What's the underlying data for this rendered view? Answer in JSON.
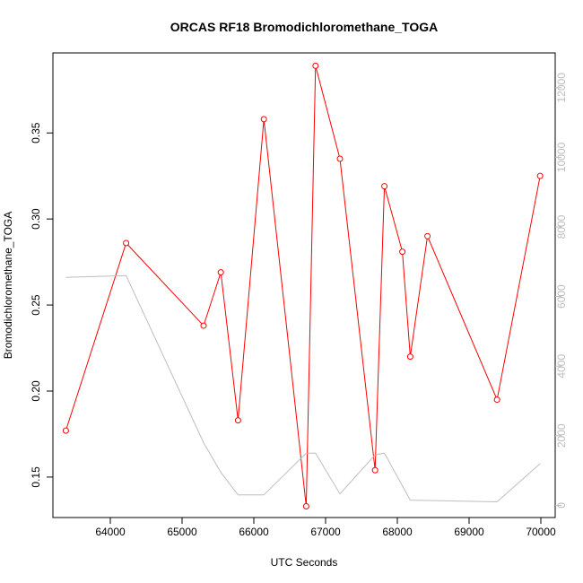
{
  "chart_data": {
    "type": "line",
    "title": "ORCAS RF18 Bromodichloromethane_TOGA",
    "xlabel": "UTC Seconds",
    "ylabel": "Bromodichloromethane_TOGA",
    "xlim": [
      63200,
      70200
    ],
    "ylim": [
      0.1265,
      0.3965
    ],
    "y2lim": [
      -350,
      13000
    ],
    "x_ticks": [
      64000,
      65000,
      66000,
      67000,
      68000,
      69000,
      70000
    ],
    "y_ticks": [
      0.15,
      0.2,
      0.25,
      0.3,
      0.35
    ],
    "y2_ticks": [
      0,
      2000,
      4000,
      6000,
      8000,
      10000,
      12000
    ],
    "grid": false,
    "colors": {
      "series": "#ff0000",
      "secondary": "#bebebe",
      "axis": "#000000",
      "axis_right": "#bdbdbd"
    },
    "series": [
      {
        "axis": "left",
        "style": "line+points",
        "x": [
          63380,
          64220,
          65300,
          65540,
          65780,
          66140,
          66730,
          66860,
          67200,
          67690,
          67820,
          68070,
          68180,
          68420,
          69390,
          69990
        ],
        "values": [
          0.177,
          0.286,
          0.238,
          0.269,
          0.183,
          0.358,
          0.133,
          0.389,
          0.335,
          0.154,
          0.319,
          0.281,
          0.22,
          0.29,
          0.195,
          0.325
        ]
      },
      {
        "axis": "right",
        "style": "line",
        "x": [
          63380,
          64220,
          65300,
          65540,
          65780,
          66140,
          66730,
          66860,
          67200,
          67690,
          67820,
          68180,
          69390,
          69990
        ],
        "values": [
          6550,
          6600,
          1800,
          950,
          300,
          300,
          1500,
          1500,
          330,
          1450,
          1500,
          150,
          100,
          1200
        ]
      }
    ]
  }
}
